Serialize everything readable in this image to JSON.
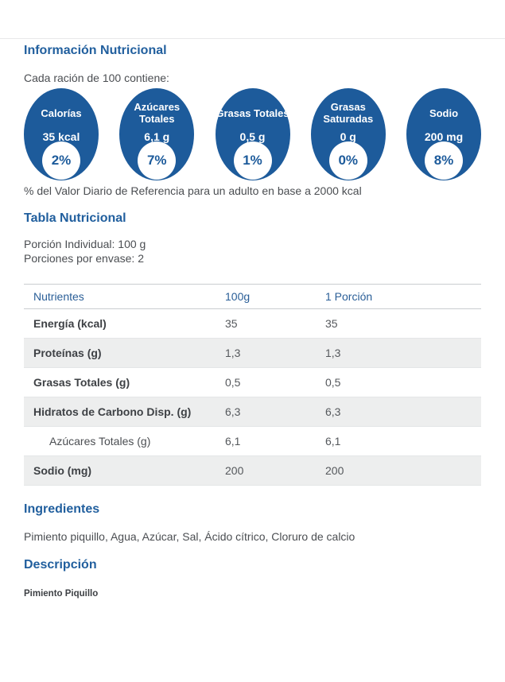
{
  "colors": {
    "accent_blue": "#215f9e",
    "badge_blue": "#1d5b9b",
    "shaded_row": "#edeeee"
  },
  "info": {
    "title": "Información Nutricional",
    "subtitle": "Cada ración de 100 contiene:",
    "footnote": "% del Valor Diario de Referencia para un adulto en base a 2000 kcal"
  },
  "badges": [
    {
      "label": "Calorías",
      "value": "35 kcal",
      "percent": "2%"
    },
    {
      "label": "Azúcares Totales",
      "value": "6,1 g",
      "percent": "7%"
    },
    {
      "label": "Grasas Totales",
      "value": "0,5 g",
      "percent": "1%"
    },
    {
      "label": "Grasas Saturadas",
      "value": "0 g",
      "percent": "0%"
    },
    {
      "label": "Sodio",
      "value": "200 mg",
      "percent": "8%"
    }
  ],
  "table_section": {
    "title": "Tabla Nutricional",
    "serving_line1": "Porción Individual: 100 g",
    "serving_line2": "Porciones por envase: 2",
    "headers": [
      "Nutrientes",
      "100g",
      "1 Porción"
    ],
    "rows": [
      {
        "label": "Energía (kcal)",
        "per100": "35",
        "perserving": "35"
      },
      {
        "label": "Proteínas (g)",
        "per100": "1,3",
        "perserving": "1,3"
      },
      {
        "label": "Grasas Totales (g)",
        "per100": "0,5",
        "perserving": "0,5"
      },
      {
        "label": "Hidratos de Carbono Disp. (g)",
        "per100": "6,3",
        "perserving": "6,3"
      },
      {
        "label": "Azúcares Totales (g)",
        "per100": "6,1",
        "perserving": "6,1"
      },
      {
        "label": "Sodio (mg)",
        "per100": "200",
        "perserving": "200"
      }
    ]
  },
  "ingredients": {
    "title": "Ingredientes",
    "text": "Pimiento piquillo, Agua, Azúcar, Sal, Ácido cítrico, Cloruro de calcio"
  },
  "description": {
    "title": "Descripción",
    "text": "Pimiento Piquillo"
  }
}
